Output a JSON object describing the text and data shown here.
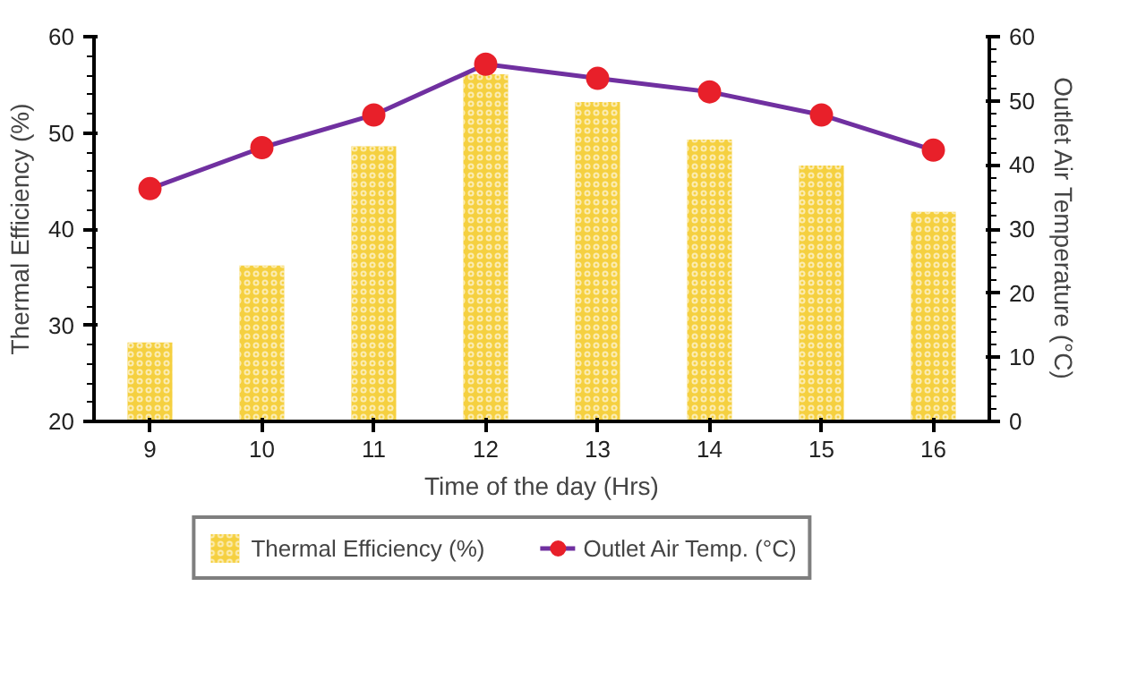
{
  "chart_data": {
    "type": "bar",
    "xlabel": "Time of the day (Hrs)",
    "ylabel": "Thermal Efficiency (%)",
    "y2label": "Outlet Air Temperature (°C)",
    "categories": [
      "9",
      "10",
      "11",
      "12",
      "13",
      "14",
      "15",
      "16"
    ],
    "series": [
      {
        "name": "Thermal Efficiency (%)",
        "color": "#f5d040",
        "values": [
          28.2,
          36.2,
          48.6,
          56.1,
          53.2,
          49.3,
          46.6,
          41.8
        ]
      },
      {
        "name": "Outlet Air Temp. (°C)",
        "type": "line",
        "axis": "y2",
        "color": "#7030a0",
        "marker": "circle",
        "values": [
          36.3,
          42.7,
          47.8,
          55.7,
          53.5,
          51.4,
          47.8,
          42.3
        ]
      }
    ],
    "ylim": [
      20,
      60
    ],
    "yticks": [
      20,
      30,
      40,
      50,
      60
    ],
    "y2lim": [
      0,
      60
    ],
    "y2ticks": [
      0,
      10,
      20,
      30,
      40,
      50,
      60
    ],
    "grid": false,
    "legend": "bottom"
  }
}
